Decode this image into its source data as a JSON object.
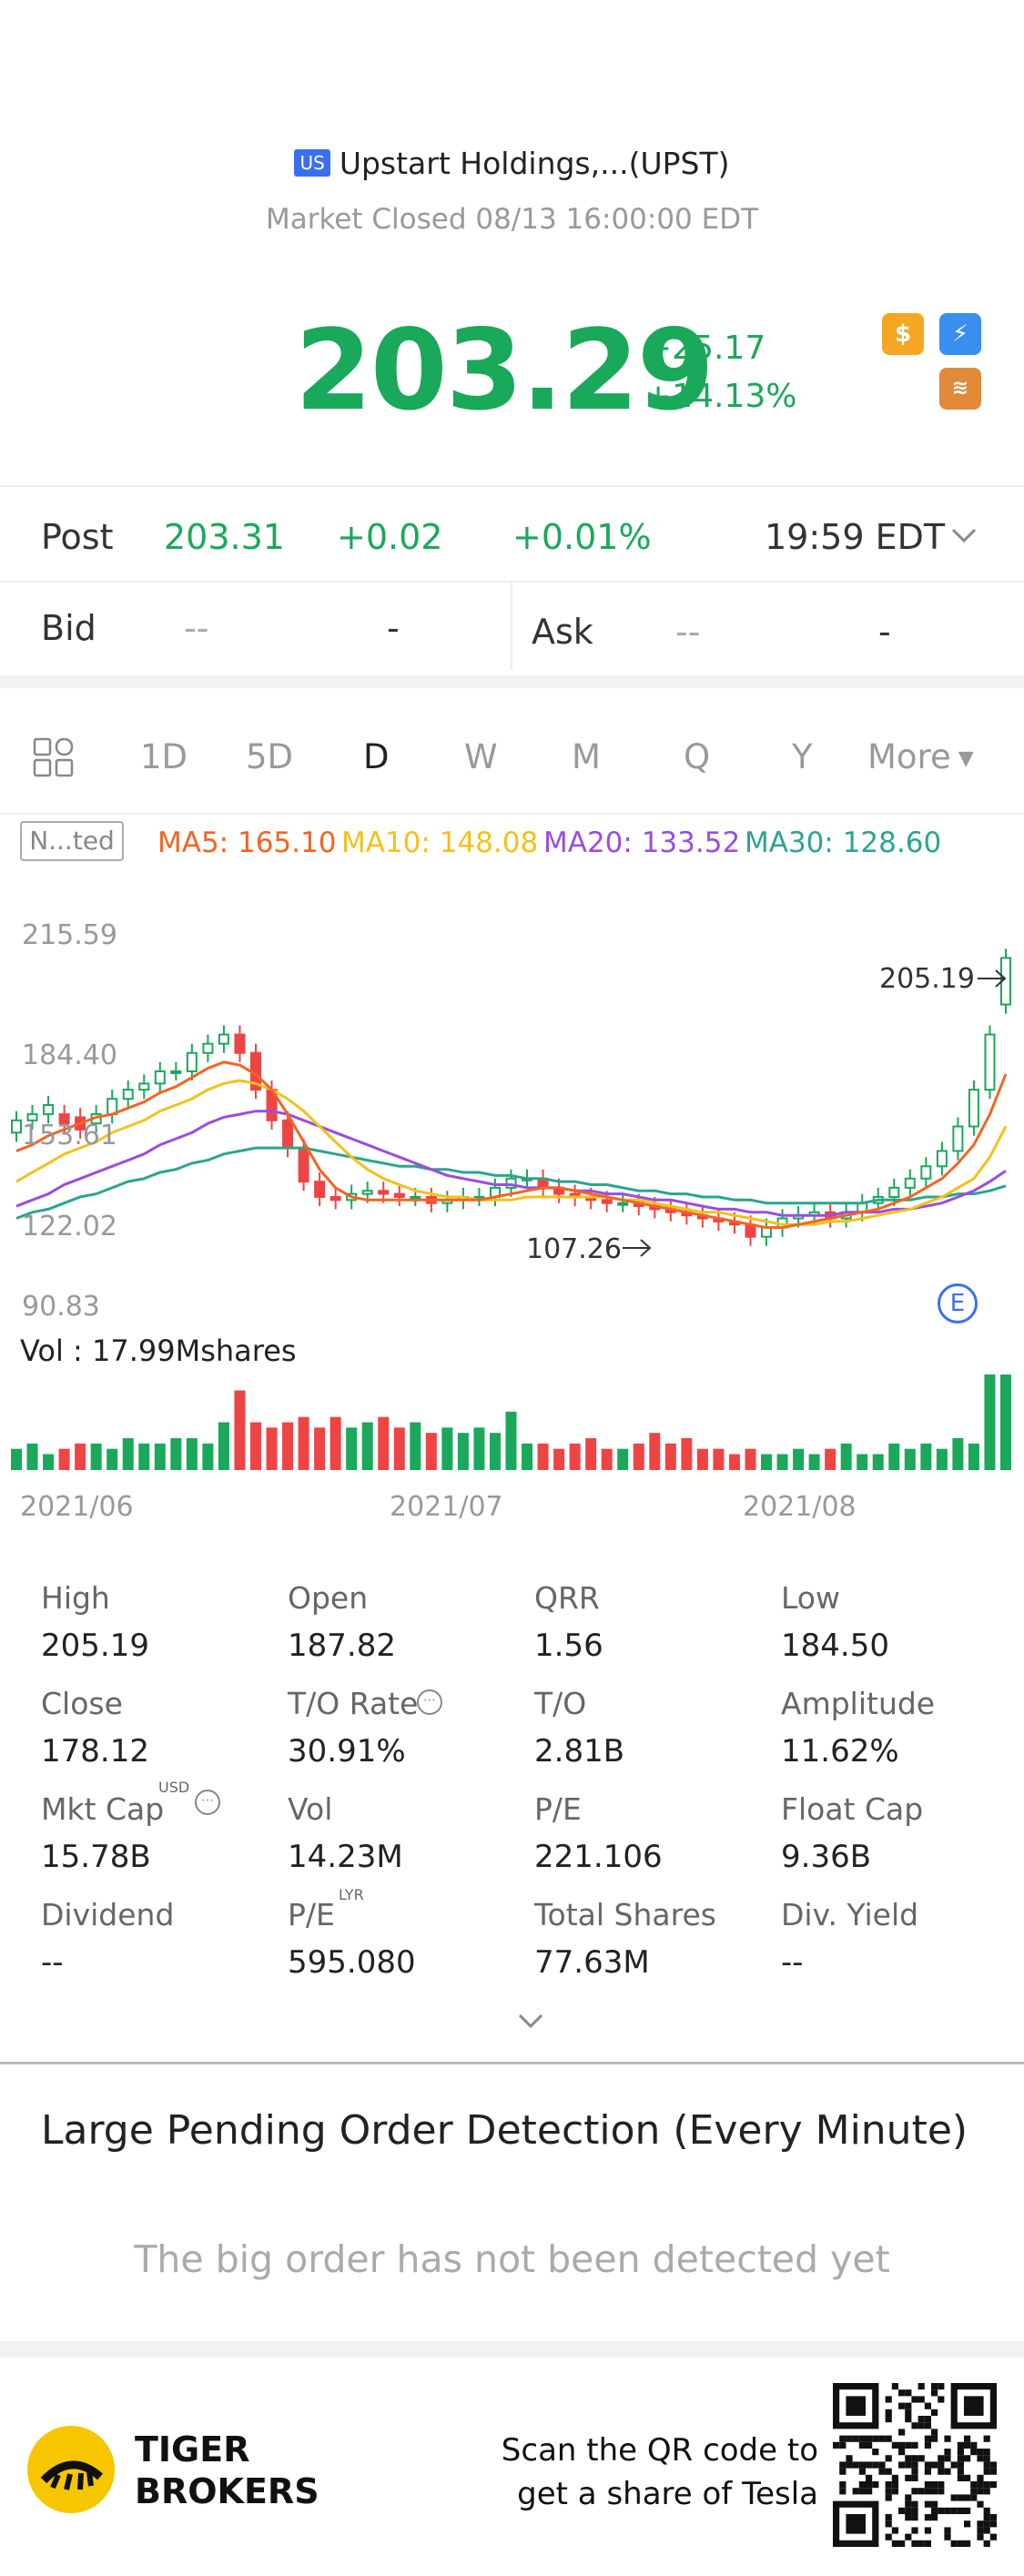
{
  "header": {
    "market_badge": "US",
    "title": "Upstart Holdings,...(UPST)",
    "status": "Market Closed 08/13 16:00:00 EDT",
    "price": "203.29",
    "change": "+25.17",
    "change_pct": "+14.13%",
    "badge_icons": [
      "dollar-icon",
      "flash-icon",
      "layers-icon"
    ]
  },
  "post": {
    "label": "Post",
    "price": "203.31",
    "change": "+0.02",
    "change_pct": "+0.01%",
    "time": "19:59 EDT"
  },
  "bid_ask": {
    "bid_label": "Bid",
    "bid_price": "--",
    "bid_size": "-",
    "ask_label": "Ask",
    "ask_price": "--",
    "ask_size": "-"
  },
  "tabs": [
    "1D",
    "5D",
    "D",
    "W",
    "M",
    "Q",
    "Y",
    "More"
  ],
  "active_tab": "D",
  "indicators": {
    "adjust_label": "N...ted",
    "ma5": "MA5: 165.10",
    "ma10": "MA10: 148.08",
    "ma20": "MA20: 133.52",
    "ma30": "MA30: 128.60"
  },
  "colors": {
    "up": "#1aa85a",
    "down": "#ef4444",
    "ma5": "#f26522",
    "ma10": "#f2c21b",
    "ma20": "#9b4dde",
    "ma30": "#2ba58f"
  },
  "chart_data": {
    "type": "candlestick",
    "y_axis_labels": [
      "215.59",
      "184.40",
      "153.61",
      "122.02",
      "90.83"
    ],
    "high_marker": "205.19",
    "low_marker": "107.26",
    "earnings_marker": "E",
    "volume_label": "Vol  : 17.99Mshares",
    "x_axis_labels": [
      "2021/06",
      "2021/07",
      "2021/08"
    ],
    "ylim": [
      90.83,
      215.59
    ],
    "closes": [
      150,
      152,
      155,
      149,
      147,
      152,
      157,
      160,
      162,
      166,
      166,
      172,
      175,
      178,
      172,
      160,
      150,
      141,
      130,
      125,
      124,
      126,
      127,
      126,
      125,
      125,
      123,
      124,
      125,
      125,
      128,
      131,
      131,
      128,
      126,
      125,
      124,
      123,
      123,
      122,
      121,
      120,
      119,
      118,
      117,
      116,
      112,
      115,
      118,
      119,
      120,
      118,
      120,
      123,
      125,
      128,
      131,
      135,
      140,
      148,
      160,
      178,
      203
    ],
    "opens": [
      146,
      150,
      152,
      152,
      151,
      149,
      152,
      157,
      160,
      162,
      166,
      166,
      172,
      175,
      178,
      172,
      160,
      150,
      141,
      130,
      125,
      124,
      126,
      127,
      126,
      125,
      125,
      123,
      124,
      125,
      125,
      128,
      131,
      131,
      128,
      126,
      125,
      124,
      123,
      123,
      122,
      121,
      120,
      119,
      118,
      117,
      116,
      112,
      115,
      118,
      119,
      120,
      118,
      120,
      123,
      125,
      128,
      131,
      135,
      140,
      148,
      160,
      187.82
    ],
    "ma5": [
      140,
      142,
      145,
      147,
      149,
      151,
      152,
      154,
      156,
      159,
      161,
      164,
      167,
      169,
      168,
      165,
      160,
      152,
      143,
      134,
      128,
      125,
      124,
      124,
      124,
      124,
      124,
      124,
      124,
      124,
      125,
      126,
      127,
      128,
      128,
      127,
      126,
      125,
      124,
      123,
      122,
      121,
      120,
      119,
      118,
      117,
      116,
      115,
      115,
      116,
      117,
      118,
      119,
      120,
      121,
      123,
      125,
      128,
      131,
      136,
      142,
      152,
      165.1
    ],
    "ma10": [
      130,
      133,
      136,
      139,
      141,
      143,
      146,
      148,
      150,
      153,
      155,
      157,
      160,
      162,
      163,
      162,
      160,
      157,
      153,
      148,
      143,
      138,
      134,
      131,
      129,
      127,
      126,
      125,
      125,
      124,
      124,
      124,
      125,
      125,
      125,
      125,
      125,
      125,
      124,
      124,
      123,
      122,
      121,
      120,
      120,
      119,
      118,
      117,
      116,
      116,
      116,
      117,
      117,
      118,
      119,
      120,
      121,
      123,
      125,
      128,
      131,
      138,
      148.08
    ],
    "ma20": [
      122,
      124,
      126,
      129,
      131,
      133,
      135,
      137,
      139,
      142,
      144,
      146,
      149,
      151,
      152,
      153,
      153,
      152,
      150,
      148,
      146,
      144,
      142,
      140,
      138,
      136,
      134,
      132,
      131,
      130,
      129,
      129,
      128,
      128,
      128,
      127,
      127,
      126,
      126,
      125,
      124,
      124,
      123,
      122,
      121,
      121,
      120,
      120,
      119,
      119,
      119,
      119,
      120,
      120,
      120,
      121,
      121,
      122,
      123,
      125,
      127,
      130,
      133.52
    ],
    "ma30": [
      118,
      120,
      121,
      123,
      125,
      126,
      128,
      130,
      131,
      133,
      134,
      136,
      137,
      139,
      140,
      141,
      141,
      141,
      141,
      140,
      139,
      138,
      137,
      136,
      135,
      135,
      134,
      134,
      133,
      133,
      132,
      132,
      131,
      131,
      130,
      130,
      129,
      129,
      128,
      127,
      127,
      126,
      126,
      125,
      125,
      124,
      124,
      123,
      123,
      123,
      123,
      123,
      123,
      123,
      124,
      124,
      124,
      125,
      125,
      126,
      126,
      127,
      128.6
    ],
    "volumes": [
      4,
      5,
      3,
      4,
      5,
      5,
      4,
      6,
      5,
      5,
      6,
      6,
      5,
      9,
      15,
      9,
      8,
      9,
      10,
      8,
      10,
      8,
      9,
      10,
      8,
      9,
      7,
      8,
      7,
      8,
      7,
      11,
      5,
      5,
      4,
      5,
      6,
      4,
      4,
      5,
      7,
      5,
      6,
      4,
      4,
      3,
      4,
      3,
      3,
      4,
      3,
      4,
      5,
      3,
      3,
      5,
      4,
      5,
      4,
      6,
      5,
      18,
      17.99
    ]
  },
  "stats": [
    {
      "label": "High",
      "value": "205.19"
    },
    {
      "label": "Open",
      "value": "187.82"
    },
    {
      "label": "QRR",
      "value": "1.56"
    },
    {
      "label": "Low",
      "value": "184.50"
    },
    {
      "label": "Close",
      "value": "178.12"
    },
    {
      "label": "T/O Rate",
      "value": "30.91%"
    },
    {
      "label": "T/O",
      "value": "2.81B"
    },
    {
      "label": "Amplitude",
      "value": "11.62%"
    },
    {
      "label": "Mkt Cap",
      "value": "15.78B"
    },
    {
      "label": "Vol",
      "value": "14.23M"
    },
    {
      "label": "P/E",
      "value": "221.106"
    },
    {
      "label": "Float Cap",
      "value": "9.36B"
    },
    {
      "label": "Dividend",
      "value": "--"
    },
    {
      "label": "P/E",
      "value": "595.080"
    },
    {
      "label": "Total Shares",
      "value": "77.63M"
    },
    {
      "label": "Div. Yield",
      "value": "--"
    }
  ],
  "stat_superscripts": {
    "mkt_cap": "USD",
    "pe_lyr": "LYR"
  },
  "pending": {
    "title": "Large Pending Order Detection (Every Minute)",
    "empty": "The big order has not been detected yet"
  },
  "footer": {
    "brand_line1": "TIGER",
    "brand_line2": "BROKERS",
    "qr_line1": "Scan the QR code to",
    "qr_line2": "get a share of Tesla"
  }
}
